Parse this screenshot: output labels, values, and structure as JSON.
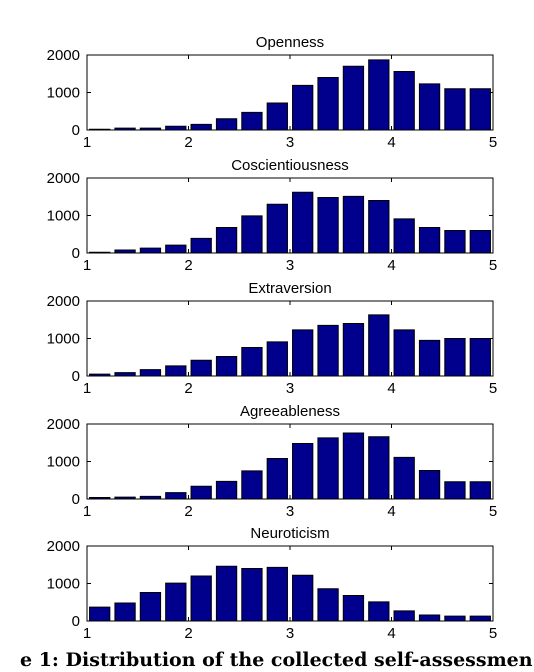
{
  "caption_fragment": "e 1: Distribution of the collected self-assessmen",
  "colors": {
    "bar": "#00008c"
  },
  "chart_data": [
    {
      "type": "bar",
      "title": "Openness",
      "bin_centers": [
        1.125,
        1.375,
        1.625,
        1.875,
        2.125,
        2.375,
        2.625,
        2.875,
        3.125,
        3.375,
        3.625,
        3.875,
        4.125,
        4.375,
        4.625,
        4.875
      ],
      "values": [
        20,
        50,
        50,
        100,
        150,
        300,
        470,
        720,
        1190,
        1400,
        1700,
        1870,
        1560,
        1230,
        1100,
        1100
      ],
      "xlim": [
        1,
        5
      ],
      "ylim": [
        0,
        2000
      ],
      "xticks": [
        "1",
        "2",
        "3",
        "4",
        "5"
      ],
      "yticks": [
        "0",
        "1000",
        "2000"
      ]
    },
    {
      "type": "bar",
      "title": "Coscientiousness",
      "bin_centers": [
        1.125,
        1.375,
        1.625,
        1.875,
        2.125,
        2.375,
        2.625,
        2.875,
        3.125,
        3.375,
        3.625,
        3.875,
        4.125,
        4.375,
        4.625,
        4.875
      ],
      "values": [
        20,
        80,
        130,
        210,
        390,
        680,
        990,
        1300,
        1620,
        1480,
        1510,
        1400,
        910,
        680,
        600,
        600
      ],
      "xlim": [
        1,
        5
      ],
      "ylim": [
        0,
        2000
      ],
      "xticks": [
        "1",
        "2",
        "3",
        "4",
        "5"
      ],
      "yticks": [
        "0",
        "1000",
        "2000"
      ]
    },
    {
      "type": "bar",
      "title": "Extraversion",
      "bin_centers": [
        1.125,
        1.375,
        1.625,
        1.875,
        2.125,
        2.375,
        2.625,
        2.875,
        3.125,
        3.375,
        3.625,
        3.875,
        4.125,
        4.375,
        4.625,
        4.875
      ],
      "values": [
        50,
        90,
        170,
        270,
        420,
        520,
        760,
        910,
        1230,
        1350,
        1400,
        1630,
        1230,
        950,
        1000,
        1000
      ],
      "xlim": [
        1,
        5
      ],
      "ylim": [
        0,
        2000
      ],
      "xticks": [
        "1",
        "2",
        "3",
        "4",
        "5"
      ],
      "yticks": [
        "0",
        "1000",
        "2000"
      ]
    },
    {
      "type": "bar",
      "title": "Agreeableness",
      "bin_centers": [
        1.125,
        1.375,
        1.625,
        1.875,
        2.125,
        2.375,
        2.625,
        2.875,
        3.125,
        3.375,
        3.625,
        3.875,
        4.125,
        4.375,
        4.625,
        4.875
      ],
      "values": [
        40,
        50,
        70,
        170,
        340,
        470,
        750,
        1080,
        1480,
        1630,
        1760,
        1660,
        1110,
        760,
        460,
        460
      ],
      "xlim": [
        1,
        5
      ],
      "ylim": [
        0,
        2000
      ],
      "xticks": [
        "1",
        "2",
        "3",
        "4",
        "5"
      ],
      "yticks": [
        "0",
        "1000",
        "2000"
      ]
    },
    {
      "type": "bar",
      "title": "Neuroticism",
      "bin_centers": [
        1.125,
        1.375,
        1.625,
        1.875,
        2.125,
        2.375,
        2.625,
        2.875,
        3.125,
        3.375,
        3.625,
        3.875,
        4.125,
        4.375,
        4.625,
        4.875
      ],
      "values": [
        370,
        480,
        760,
        1010,
        1200,
        1460,
        1400,
        1430,
        1220,
        860,
        680,
        510,
        270,
        160,
        130,
        130
      ],
      "xlim": [
        1,
        5
      ],
      "ylim": [
        0,
        2000
      ],
      "xticks": [
        "1",
        "2",
        "3",
        "4",
        "5"
      ],
      "yticks": [
        "0",
        "1000",
        "2000"
      ]
    }
  ]
}
